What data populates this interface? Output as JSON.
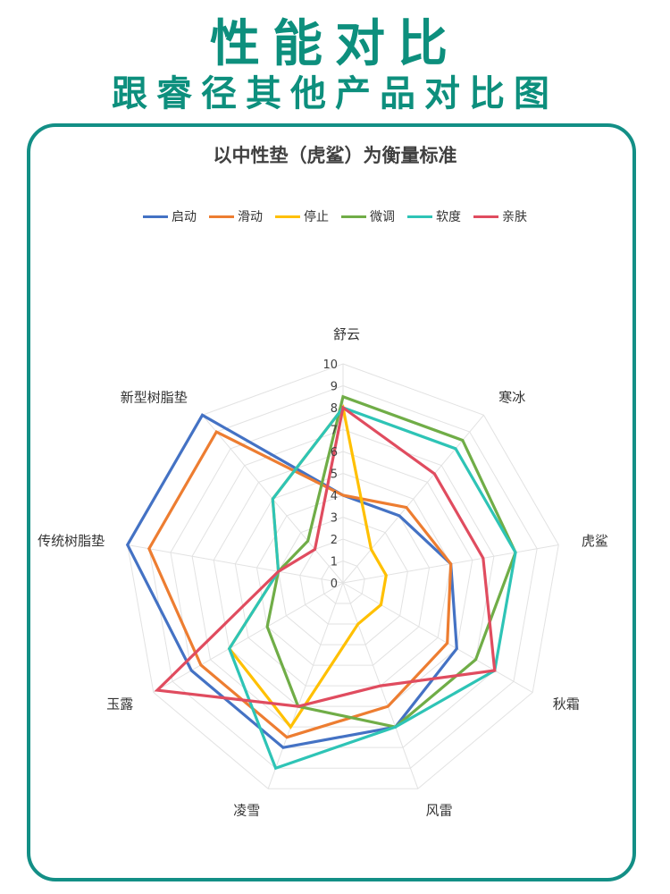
{
  "header": {
    "title": "性能对比",
    "subtitle": "跟睿径其他产品对比图"
  },
  "chart_data": {
    "type": "radar",
    "title": "以中性垫（虎鲨）为衡量标准",
    "categories": [
      "舒云",
      "寒冰",
      "虎鲨",
      "秋霜",
      "风雷",
      "凌雪",
      "玉露",
      "传统树脂垫",
      "新型树脂垫"
    ],
    "rlim": [
      0,
      10
    ],
    "ticks": [
      "0",
      "1",
      "2",
      "3",
      "4",
      "5",
      "6",
      "7",
      "8",
      "9",
      "10"
    ],
    "legend_position": "top",
    "series": [
      {
        "name": "启动",
        "color": "#4472c4",
        "values": [
          4,
          4,
          5,
          6,
          7,
          8,
          8,
          10,
          10
        ]
      },
      {
        "name": "滑动",
        "color": "#ed7d31",
        "values": [
          4,
          4.5,
          5,
          5.5,
          6,
          7.5,
          7.5,
          9,
          9
        ]
      },
      {
        "name": "停止",
        "color": "#ffc000",
        "values": [
          8,
          2,
          2,
          2,
          2,
          7,
          6,
          3,
          5
        ]
      },
      {
        "name": "微调",
        "color": "#70ad47",
        "values": [
          8.5,
          8.5,
          8,
          7,
          7,
          6,
          4,
          3,
          2.5
        ]
      },
      {
        "name": "软度",
        "color": "#2ec4b6",
        "values": [
          8,
          8,
          8,
          8,
          7,
          9,
          6,
          3,
          5
        ]
      },
      {
        "name": "亲肤",
        "color": "#e04c5f",
        "values": [
          8,
          6.5,
          6.5,
          8,
          5,
          6,
          9.8,
          3,
          2
        ]
      }
    ]
  }
}
